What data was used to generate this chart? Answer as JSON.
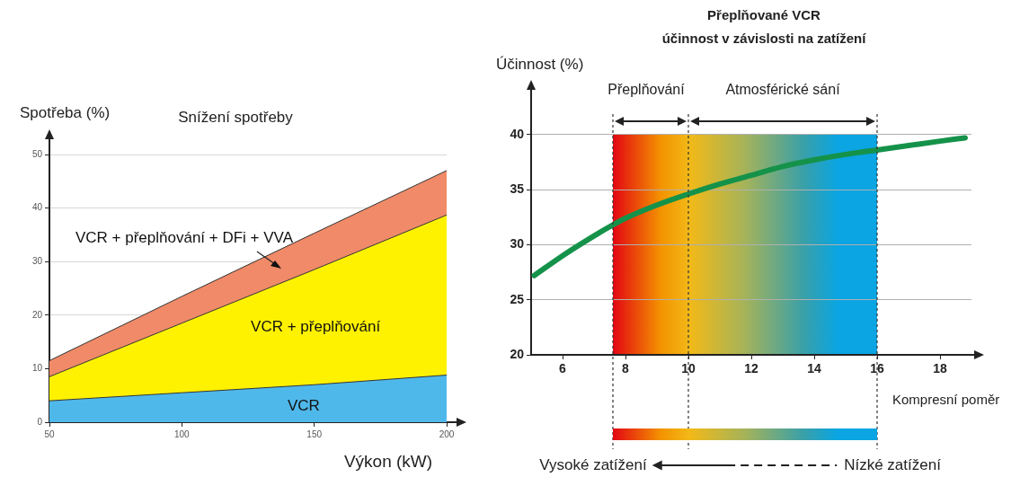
{
  "chart_data": [
    {
      "type": "area",
      "title": "Snížení spotřeby",
      "xlabel": "Výkon (kW)",
      "ylabel": "Spotřeba (%)",
      "stacked": true,
      "marker": "none",
      "grid": "y",
      "legend": false,
      "x": [
        50,
        100,
        150,
        200
      ],
      "xlim": [
        50,
        200
      ],
      "xticks": [
        50,
        100,
        150,
        200
      ],
      "ylim": [
        0,
        50
      ],
      "yticks": [
        0,
        10,
        20,
        30,
        40,
        50
      ],
      "series": [
        {
          "name": "VCR",
          "color": "#4fb8ea",
          "values": [
            4,
            5.5,
            7,
            8.8
          ]
        },
        {
          "name": "VCR + přeplňování",
          "color": "#fff200",
          "values": [
            4.5,
            13,
            21.5,
            29.9
          ]
        },
        {
          "name": "VCR + přeplňování + DFi + VVA",
          "color": "#f08a68",
          "values": [
            3,
            5,
            6.8,
            8.3
          ]
        }
      ]
    },
    {
      "type": "line",
      "title": "Přeplňované VCR",
      "subtitle": "účinnost v závislosti na zatížení",
      "xlabel": "Kompresní poměr",
      "ylabel": "Účinnost (%)",
      "marker": "none",
      "grid": "y",
      "legend": false,
      "x": [
        5.1,
        6,
        7,
        7.6,
        8,
        9,
        10,
        11,
        12,
        13,
        14,
        15,
        16,
        17,
        18,
        18.8
      ],
      "xlim": [
        5,
        19
      ],
      "xticks": [
        6,
        8,
        10,
        12,
        14,
        16,
        18
      ],
      "ylim": [
        20,
        43
      ],
      "yticks": [
        20,
        25,
        30,
        35,
        40
      ],
      "series": [
        {
          "color": "#15924a",
          "values": [
            27.2,
            29,
            30.8,
            31.8,
            32.4,
            33.6,
            34.6,
            35.5,
            36.3,
            37.1,
            37.7,
            38.2,
            38.6,
            39,
            39.4,
            39.7
          ]
        }
      ],
      "bands": [
        {
          "axis": "x",
          "from": 7.6,
          "to": 10,
          "label": "Přeplňování",
          "color": "#e30613"
        },
        {
          "axis": "x",
          "from": 10,
          "to": 16,
          "label": "Atmosférické sání",
          "color": "#0aa5e2"
        }
      ],
      "ref_lines": [
        {
          "axis": "x",
          "value": 7.6,
          "line_style": "dashed",
          "color": "#333333"
        },
        {
          "axis": "x",
          "value": 10,
          "line_style": "dashed",
          "color": "#333333"
        },
        {
          "axis": "x",
          "value": 16,
          "line_style": "dashed",
          "color": "#333333"
        }
      ],
      "annotations": [
        "Vysoké zatížení",
        "Nízké zatížení"
      ]
    }
  ]
}
